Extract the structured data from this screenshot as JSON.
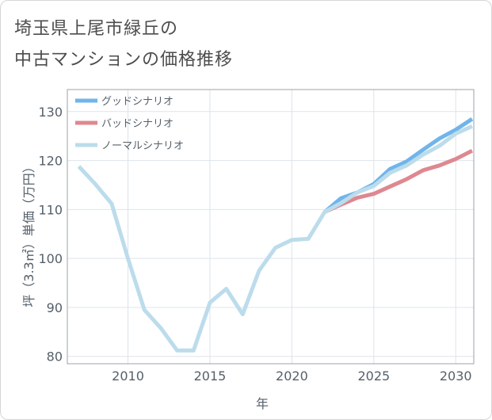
{
  "title_lines": [
    "埼玉県上尾市緑丘の",
    "中古マンションの価格推移"
  ],
  "chart_data": {
    "type": "line",
    "title": "埼玉県上尾市緑丘の中古マンションの価格推移",
    "xlabel": "年",
    "ylabel": "坪（3.3㎡）単価（万円）",
    "xlim": [
      2006.3,
      2031.1
    ],
    "ylim": [
      78.5,
      134.5
    ],
    "x_ticks": [
      2010,
      2015,
      2020,
      2025,
      2030
    ],
    "y_ticks": [
      80,
      90,
      100,
      110,
      120,
      130
    ],
    "grid": true,
    "legend_position": "top-left",
    "series": [
      {
        "name": "グッドシナリオ",
        "color": "#70b5ea",
        "x": [
          2022,
          2023,
          2024,
          2025,
          2026,
          2027,
          2028,
          2029,
          2030,
          2031
        ],
        "y": [
          109.5,
          112.3,
          113.5,
          115.2,
          118.3,
          119.8,
          122.2,
          124.5,
          126.3,
          128.5
        ]
      },
      {
        "name": "バッドシナリオ",
        "color": "#de8890",
        "x": [
          2022,
          2023,
          2024,
          2025,
          2026,
          2027,
          2028,
          2029,
          2030,
          2031
        ],
        "y": [
          109.5,
          111.0,
          112.4,
          113.2,
          114.7,
          116.2,
          118.0,
          119.0,
          120.3,
          122.0
        ]
      },
      {
        "name": "ノーマルシナリオ",
        "color": "#bcdcec",
        "x": [
          2007,
          2008,
          2009,
          2010,
          2011,
          2012,
          2013,
          2014,
          2015,
          2016,
          2017,
          2018,
          2019,
          2020,
          2021,
          2022,
          2023,
          2024,
          2025,
          2026,
          2027,
          2028,
          2029,
          2030,
          2031
        ],
        "y": [
          118.8,
          115.2,
          111.2,
          100.0,
          89.5,
          85.8,
          81.2,
          81.2,
          91.0,
          93.8,
          88.6,
          97.5,
          102.2,
          103.8,
          104.0,
          109.5,
          111.3,
          113.5,
          114.8,
          117.5,
          119.0,
          121.2,
          123.0,
          125.5,
          127.0
        ]
      }
    ]
  }
}
